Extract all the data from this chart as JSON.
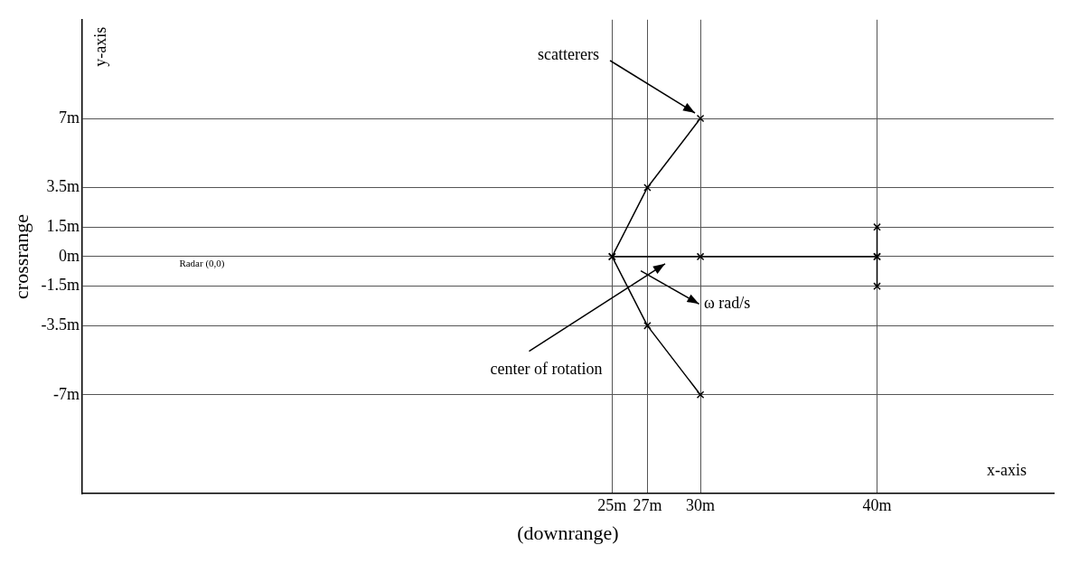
{
  "chart_data": {
    "type": "line",
    "xlabel": "(downrange)",
    "ylabel": "crossrange",
    "xlim": [
      -5,
      50
    ],
    "ylim": [
      -12,
      12
    ],
    "xticks": [
      {
        "value": 25,
        "label": "25m"
      },
      {
        "value": 27,
        "label": "27m"
      },
      {
        "value": 30,
        "label": "30m"
      },
      {
        "value": 40,
        "label": "40m"
      }
    ],
    "yticks": [
      {
        "value": 7,
        "label": "7m"
      },
      {
        "value": 3.5,
        "label": "3.5m"
      },
      {
        "value": 1.5,
        "label": "1.5m"
      },
      {
        "value": 0,
        "label": "0m"
      },
      {
        "value": -1.5,
        "label": "-1.5m"
      },
      {
        "value": -3.5,
        "label": "-3.5m"
      },
      {
        "value": -7,
        "label": "-7m"
      }
    ],
    "grid": true,
    "marker": "cross",
    "line_style": "solid",
    "series": [
      {
        "color": "#000000",
        "x": [
          30,
          27,
          25,
          27,
          30
        ],
        "values": [
          7,
          3.5,
          0,
          -3.5,
          -7
        ]
      },
      {
        "color": "#000000",
        "x": [
          25,
          30,
          40
        ],
        "values": [
          0,
          0,
          0
        ]
      },
      {
        "color": "#000000",
        "x": [
          40,
          40,
          40
        ],
        "values": [
          1.5,
          0,
          -1.5
        ]
      }
    ],
    "annotations": [
      {
        "text": "scatterers",
        "x": 30,
        "y": 7
      },
      "center of rotation",
      "ω rad/s",
      "Radar (0,0)",
      "y-axis",
      "x-axis"
    ]
  }
}
